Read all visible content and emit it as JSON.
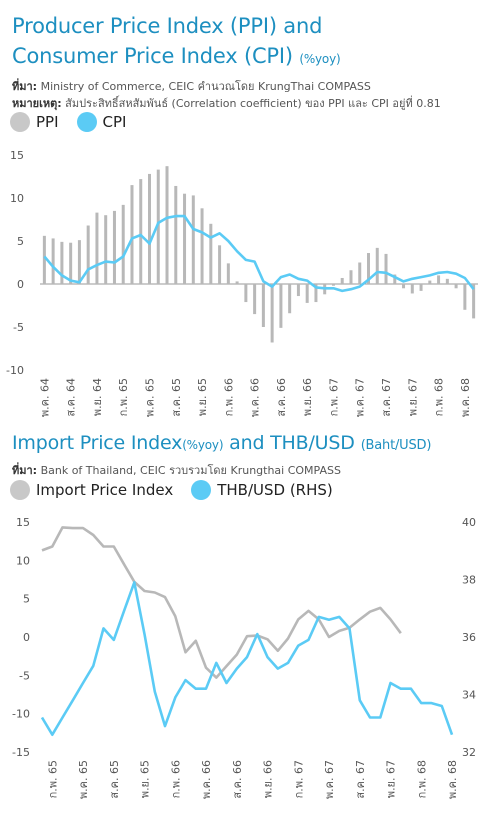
{
  "top": {
    "title_line1": "Producer Price Index (PPI) and",
    "title_line2": "Consumer Price Index (CPI)",
    "title_unit": "(%yoy)",
    "source_label": "ที่มา:",
    "source_text": " Ministry of Commerce, CEIC  คำนวณโดย KrungThai COMPASS",
    "remark_label": "หมายเหตุ:",
    "remark_text": " สัมประสิทธิ์สหสัมพันธ์ (Correlation coefficient) ของ PPI และ CPI อยู่ที่ 0.81"
  },
  "bottom": {
    "title": "Import Price Index",
    "title_unit": "(%yoy)",
    "title_rest": " and THB/USD",
    "title_unit2": "(Baht/USD)",
    "source_label": "ที่มา:",
    "source_text": "  Bank of Thailand, CEIC รวบรวมโดย Krungthai COMPASS"
  },
  "colors": {
    "title": "#1d8fc0",
    "grey": "#b8b8b8",
    "blue": "#5bcbf5",
    "axis": "#555555"
  },
  "chart_data": [
    {
      "type": "bar",
      "series": [
        {
          "name": "PPI",
          "type": "bar",
          "color": "#b8b8b8",
          "values": [
            5.6,
            5.3,
            4.9,
            4.8,
            5.1,
            6.8,
            8.3,
            8.0,
            8.5,
            9.2,
            11.5,
            12.2,
            12.8,
            13.3,
            13.7,
            11.4,
            10.5,
            10.3,
            8.8,
            7.0,
            4.5,
            2.4,
            0.3,
            -2.1,
            -3.5,
            -5.0,
            -6.8,
            -5.1,
            -3.4,
            -1.4,
            -2.2,
            -2.1,
            -1.2,
            -0.2,
            0.7,
            1.6,
            2.5,
            3.6,
            4.2,
            3.5,
            1.1,
            -0.5,
            -1.1,
            -0.8,
            0.4,
            1.0,
            0.6,
            -0.5,
            -3.0,
            -4.0
          ]
        },
        {
          "name": "CPI",
          "type": "line",
          "color": "#5bcbf5",
          "values": [
            3.2,
            2.0,
            1.0,
            0.4,
            0.2,
            1.7,
            2.2,
            2.6,
            2.5,
            3.2,
            5.3,
            5.7,
            4.7,
            7.1,
            7.7,
            7.9,
            7.9,
            6.4,
            6.0,
            5.4,
            5.9,
            5.0,
            3.8,
            2.8,
            2.6,
            0.3,
            -0.3,
            0.8,
            1.1,
            0.6,
            0.4,
            -0.4,
            -0.5,
            -0.5,
            -0.8,
            -0.6,
            -0.3,
            0.5,
            1.4,
            1.3,
            0.8,
            0.3,
            0.6,
            0.8,
            1.0,
            1.3,
            1.4,
            1.2,
            0.7,
            -0.6
          ]
        }
      ],
      "ylim": [
        -10,
        15
      ],
      "yticks": [
        15,
        10,
        5,
        0,
        -5,
        -10
      ],
      "xticks": [
        "พ.ค. 64",
        "ส.ค. 64",
        "พ.ย. 64",
        "ก.พ. 65",
        "พ.ค. 65",
        "ส.ค. 65",
        "พ.ย. 65",
        "ก.พ. 66",
        "พ.ค. 66",
        "ส.ค. 66",
        "พ.ย. 66",
        "ก.พ. 67",
        "พ.ค. 67",
        "ส.ค. 67",
        "พ.ย. 67",
        "ก.พ. 68",
        "พ.ค. 68"
      ],
      "legend": "top-left",
      "grid": false
    },
    {
      "type": "line",
      "series": [
        {
          "name": "Import Price Index",
          "axis": "left",
          "color": "#b8b8b8",
          "values": [
            11.3,
            11.8,
            14.3,
            14.2,
            14.2,
            13.3,
            11.8,
            11.8,
            9.5,
            7.2,
            6.0,
            5.8,
            5.2,
            2.7,
            -2.0,
            -0.5,
            -4.0,
            -5.3,
            -3.8,
            -2.3,
            0.1,
            0.2,
            -0.3,
            -1.8,
            -0.2,
            2.3,
            3.4,
            2.3,
            0.0,
            0.8,
            1.2,
            2.3,
            3.3,
            3.8,
            2.3,
            0.5
          ]
        },
        {
          "name": "THB/USD (RHS)",
          "axis": "right",
          "color": "#5bcbf5",
          "values": [
            33.2,
            32.6,
            33.2,
            33.8,
            34.4,
            35.0,
            36.3,
            35.9,
            36.9,
            37.9,
            36.1,
            34.1,
            32.9,
            33.9,
            34.5,
            34.2,
            34.2,
            35.1,
            34.4,
            34.9,
            35.3,
            36.1,
            35.3,
            34.9,
            35.1,
            35.7,
            35.9,
            36.7,
            36.6,
            36.7,
            36.3,
            33.8,
            33.2,
            33.2,
            34.4,
            34.2,
            34.2,
            33.7,
            33.7,
            33.6,
            32.6
          ]
        }
      ],
      "ylim_left": [
        -15,
        15
      ],
      "ylim_right": [
        32,
        40
      ],
      "yticks_left": [
        15,
        10,
        5,
        0,
        -5,
        -10,
        -15
      ],
      "yticks_right": [
        40,
        38,
        36,
        34,
        32
      ],
      "xticks": [
        "ก.พ. 65",
        "พ.ค. 65",
        "ส.ค. 65",
        "พ.ย. 65",
        "ก.พ. 66",
        "พ.ค. 66",
        "ส.ค. 66",
        "พ.ย. 66",
        "ก.พ. 67",
        "พ.ค. 67",
        "ส.ค. 67",
        "พ.ย. 67",
        "ก.พ. 68",
        "พ.ค. 68"
      ],
      "legend": "top-left",
      "grid": false
    }
  ]
}
